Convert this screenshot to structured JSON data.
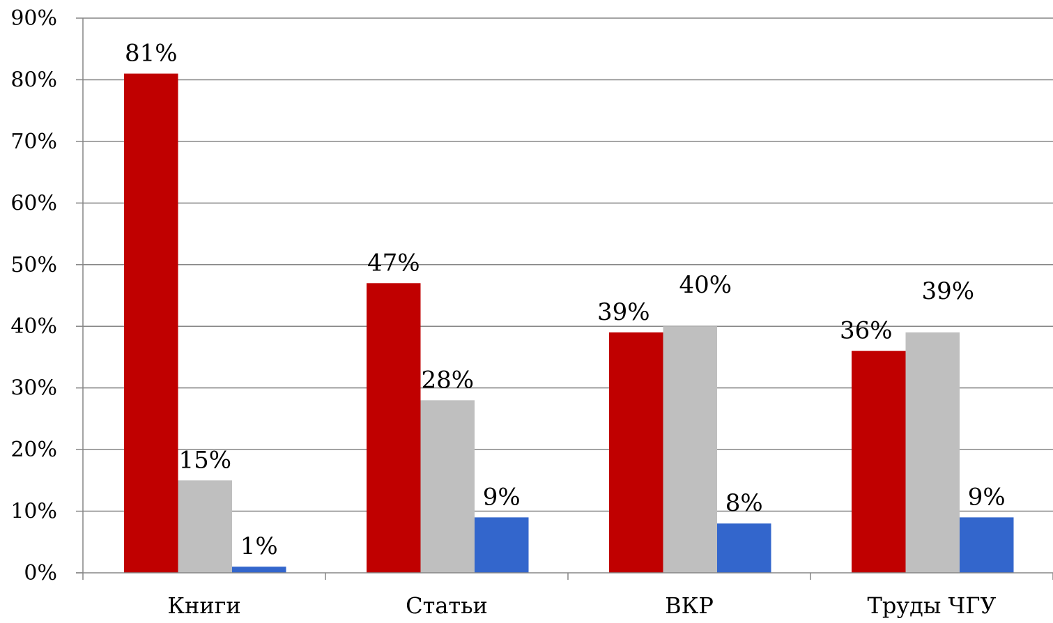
{
  "chart_data": {
    "type": "bar",
    "title": "",
    "xlabel": "",
    "ylabel": "",
    "ylim": [
      0,
      90
    ],
    "yticks": [
      "0%",
      "10%",
      "20%",
      "30%",
      "40%",
      "50%",
      "60%",
      "70%",
      "80%",
      "90%"
    ],
    "grid": true,
    "legend": "none",
    "categories": [
      "Книги",
      "Статьи",
      "ВКР",
      "Труды ЧГУ"
    ],
    "series": [
      {
        "color": "#c00000",
        "values": [
          81,
          47,
          39,
          36
        ],
        "labels": [
          "81%",
          "47%",
          "39%",
          "36%"
        ]
      },
      {
        "color": "#bfbfbf",
        "values": [
          15,
          28,
          40,
          39
        ],
        "labels": [
          "15%",
          "28%",
          "40%",
          "39%"
        ]
      },
      {
        "color": "#3366cc",
        "values": [
          1,
          9,
          8,
          9
        ],
        "labels": [
          "1%",
          "9%",
          "8%",
          "9%"
        ]
      }
    ]
  }
}
